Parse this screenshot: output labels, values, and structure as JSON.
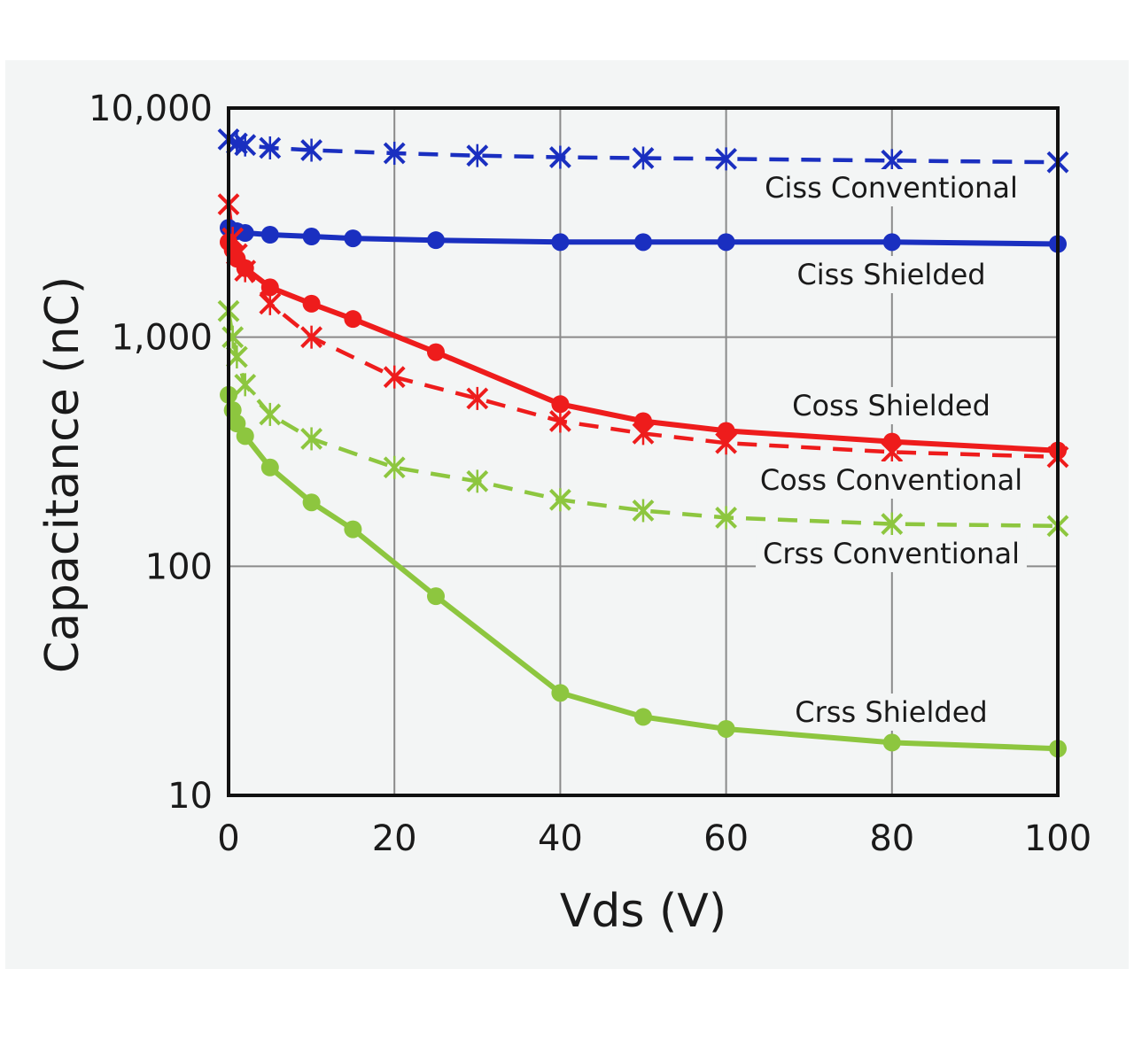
{
  "chart_data": {
    "type": "line",
    "xlabel": "Vds (V)",
    "ylabel": "Capacitance (nC)",
    "xlim": [
      0,
      100
    ],
    "ylim": [
      10,
      10000
    ],
    "y_scale": "log",
    "x_ticks": [
      0,
      20,
      40,
      60,
      80,
      100
    ],
    "x_tick_labels": [
      "0",
      "20",
      "40",
      "60",
      "80",
      "100"
    ],
    "y_ticks": [
      10,
      100,
      1000,
      10000
    ],
    "y_tick_labels": [
      "10",
      "100",
      "1,000",
      "10,000"
    ],
    "grid": true,
    "legend": "inline labels",
    "colors": {
      "ciss": "#1a2fc0",
      "coss": "#ee1c1c",
      "crss": "#8dc63f",
      "grid": "#8a8a8a",
      "frame": "#111111"
    },
    "series": [
      {
        "name": "Ciss Conventional",
        "color_key": "ciss",
        "line": "dashed",
        "marker": "x",
        "x": [
          0,
          1,
          2,
          5,
          10,
          20,
          30,
          40,
          50,
          60,
          80,
          100
        ],
        "y": [
          7300,
          7000,
          6900,
          6700,
          6550,
          6350,
          6200,
          6100,
          6050,
          6000,
          5900,
          5800
        ]
      },
      {
        "name": "Ciss Shielded",
        "color_key": "ciss",
        "line": "solid",
        "marker": "circle",
        "x": [
          0,
          1,
          2,
          5,
          10,
          15,
          25,
          40,
          50,
          60,
          80,
          100
        ],
        "y": [
          3000,
          2900,
          2850,
          2800,
          2750,
          2700,
          2650,
          2600,
          2600,
          2600,
          2600,
          2550
        ]
      },
      {
        "name": "Coss Shielded",
        "color_key": "coss",
        "line": "solid",
        "marker": "circle",
        "x": [
          0,
          0.5,
          1,
          2,
          5,
          10,
          15,
          25,
          40,
          50,
          60,
          80,
          100
        ],
        "y": [
          2600,
          2400,
          2200,
          2000,
          1650,
          1400,
          1200,
          860,
          510,
          430,
          390,
          350,
          320
        ]
      },
      {
        "name": "Coss Conventional",
        "color_key": "coss",
        "line": "dashed",
        "marker": "x",
        "x": [
          0,
          0.5,
          1,
          2,
          5,
          10,
          20,
          30,
          40,
          50,
          60,
          80,
          100
        ],
        "y": [
          3800,
          2700,
          2300,
          1950,
          1400,
          1000,
          670,
          540,
          430,
          380,
          345,
          315,
          300
        ]
      },
      {
        "name": "Crss Conventional",
        "color_key": "crss",
        "line": "dashed",
        "marker": "x",
        "x": [
          0,
          0.5,
          1,
          2,
          5,
          10,
          20,
          30,
          40,
          50,
          60,
          80,
          100
        ],
        "y": [
          1300,
          1000,
          820,
          620,
          460,
          360,
          270,
          235,
          195,
          175,
          163,
          153,
          150
        ]
      },
      {
        "name": "Crss Shielded",
        "color_key": "crss",
        "line": "solid",
        "marker": "circle",
        "x": [
          0,
          0.5,
          1,
          2,
          5,
          10,
          15,
          25,
          40,
          50,
          60,
          80,
          100
        ],
        "y": [
          560,
          480,
          420,
          370,
          270,
          190,
          145,
          74,
          28,
          22,
          19.5,
          17,
          16
        ]
      }
    ]
  }
}
